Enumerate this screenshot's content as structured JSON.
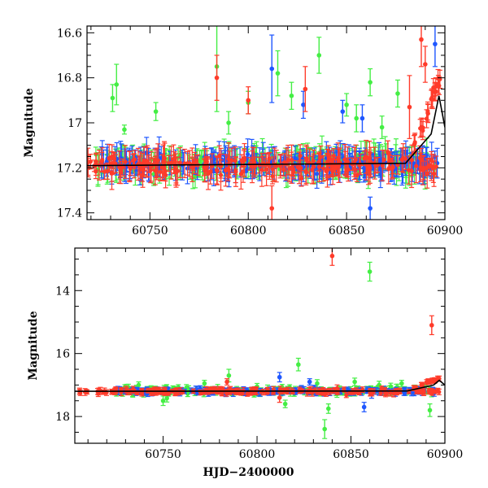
{
  "chart_data": [
    {
      "type": "scatter",
      "panel": "top",
      "xlabel": "",
      "ylabel": "Magnitude",
      "xlim": [
        60718,
        60900
      ],
      "ylim": [
        17.43,
        16.57
      ],
      "y_inverted": true,
      "x_ticks": [
        "60750",
        "60800",
        "60850",
        "60900"
      ],
      "x_tick_values": [
        60750,
        60800,
        60850,
        60900
      ],
      "y_ticks": [
        "16.6",
        "16.8",
        "17",
        "17.2",
        "17.4"
      ],
      "y_tick_values": [
        16.6,
        16.8,
        17.0,
        17.2,
        17.4
      ],
      "colors": {
        "green": "#44ee44",
        "blue": "#1f57ff",
        "red": "#ff3b2a",
        "model": "#000000"
      },
      "series": [
        {
          "color": "green",
          "baseline": {
            "x_range": [
              60722,
              60895
            ],
            "y": 17.18,
            "scatter": 0.05
          },
          "points": [
            {
              "x": 60731,
              "y": 16.89,
              "err": 0.06
            },
            {
              "x": 60733,
              "y": 16.83,
              "err": 0.09
            },
            {
              "x": 60737,
              "y": 17.03,
              "err": 0.02
            },
            {
              "x": 60753,
              "y": 16.95,
              "err": 0.04
            },
            {
              "x": 60784,
              "y": 16.75,
              "err": 0.2
            },
            {
              "x": 60790,
              "y": 17.0,
              "err": 0.05
            },
            {
              "x": 60800,
              "y": 16.91,
              "err": 0.05
            },
            {
              "x": 60815,
              "y": 16.78,
              "err": 0.1
            },
            {
              "x": 60822,
              "y": 16.88,
              "err": 0.06
            },
            {
              "x": 60836,
              "y": 16.7,
              "err": 0.08
            },
            {
              "x": 60850,
              "y": 16.92,
              "err": 0.05
            },
            {
              "x": 60855,
              "y": 16.98,
              "err": 0.06
            },
            {
              "x": 60862,
              "y": 16.82,
              "err": 0.06
            },
            {
              "x": 60868,
              "y": 17.02,
              "err": 0.05
            },
            {
              "x": 60876,
              "y": 16.87,
              "err": 0.06
            }
          ]
        },
        {
          "color": "blue",
          "baseline": {
            "x_range": [
              60725,
              60897
            ],
            "y": 17.18,
            "scatter": 0.04
          },
          "points": [
            {
              "x": 60812,
              "y": 16.76,
              "err": 0.15
            },
            {
              "x": 60828,
              "y": 16.92,
              "err": 0.06
            },
            {
              "x": 60848,
              "y": 16.95,
              "err": 0.05
            },
            {
              "x": 60858,
              "y": 16.98,
              "err": 0.06
            },
            {
              "x": 60862,
              "y": 17.38,
              "err": 0.05
            },
            {
              "x": 60895,
              "y": 16.65,
              "err": 0.1
            }
          ]
        },
        {
          "color": "red",
          "baseline": {
            "x_range": [
              60718,
              60897
            ],
            "y": 17.19,
            "scatter": 0.04
          },
          "points": [
            {
              "x": 60784,
              "y": 16.8,
              "err": 0.1
            },
            {
              "x": 60800,
              "y": 16.9,
              "err": 0.06
            },
            {
              "x": 60812,
              "y": 17.38,
              "err": 0.1
            },
            {
              "x": 60829,
              "y": 16.85,
              "err": 0.1
            },
            {
              "x": 60871,
              "y": 17.13,
              "err": 0.05
            },
            {
              "x": 60882,
              "y": 16.93,
              "err": 0.14
            },
            {
              "x": 60888,
              "y": 16.63,
              "err": 0.12
            },
            {
              "x": 60890,
              "y": 16.74,
              "err": 0.08
            }
          ]
        }
      ],
      "outburst": {
        "x": [
          60884,
          60888,
          60891,
          60893,
          60895,
          60897
        ],
        "y": [
          17.1,
          17.02,
          16.96,
          16.9,
          16.85,
          16.82
        ]
      },
      "model_curve": {
        "x": [
          60718,
          60880,
          60893,
          60897,
          60900
        ],
        "y": [
          17.19,
          17.18,
          17.05,
          16.88,
          17.02
        ]
      }
    },
    {
      "type": "scatter",
      "panel": "bottom",
      "xlabel": "HJD−2400000",
      "ylabel": "Magnitude",
      "xlim": [
        60703,
        60900
      ],
      "ylim": [
        18.85,
        12.65
      ],
      "y_inverted": true,
      "x_ticks": [
        "60750",
        "60800",
        "60850",
        "60900"
      ],
      "x_tick_values": [
        60750,
        60800,
        60850,
        60900
      ],
      "y_ticks": [
        "14",
        "16",
        "18"
      ],
      "y_tick_values": [
        14,
        16,
        18
      ],
      "colors": {
        "green": "#44ee44",
        "blue": "#1f57ff",
        "red": "#ff3b2a",
        "model": "#000000"
      },
      "series": [
        {
          "color": "green",
          "baseline": {
            "x_range": [
              60725,
              60895
            ],
            "y": 17.18,
            "scatter": 0.12
          },
          "points": [
            {
              "x": 60737,
              "y": 17.0,
              "err": 0.1
            },
            {
              "x": 60750,
              "y": 17.5,
              "err": 0.15
            },
            {
              "x": 60752,
              "y": 17.42,
              "err": 0.12
            },
            {
              "x": 60772,
              "y": 16.95,
              "err": 0.1
            },
            {
              "x": 60785,
              "y": 16.7,
              "err": 0.2
            },
            {
              "x": 60800,
              "y": 17.05,
              "err": 0.1
            },
            {
              "x": 60815,
              "y": 17.6,
              "err": 0.12
            },
            {
              "x": 60822,
              "y": 16.35,
              "err": 0.2
            },
            {
              "x": 60832,
              "y": 16.95,
              "err": 0.12
            },
            {
              "x": 60836,
              "y": 18.4,
              "err": 0.3
            },
            {
              "x": 60838,
              "y": 17.75,
              "err": 0.15
            },
            {
              "x": 60852,
              "y": 16.9,
              "err": 0.12
            },
            {
              "x": 60860,
              "y": 13.4,
              "err": 0.3
            },
            {
              "x": 60865,
              "y": 17.0,
              "err": 0.12
            },
            {
              "x": 60877,
              "y": 16.95,
              "err": 0.1
            },
            {
              "x": 60892,
              "y": 17.8,
              "err": 0.2
            }
          ]
        },
        {
          "color": "blue",
          "baseline": {
            "x_range": [
              60725,
              60897
            ],
            "y": 17.2,
            "scatter": 0.08
          },
          "points": [
            {
              "x": 60812,
              "y": 16.75,
              "err": 0.15
            },
            {
              "x": 60828,
              "y": 16.9,
              "err": 0.1
            },
            {
              "x": 60857,
              "y": 17.7,
              "err": 0.15
            },
            {
              "x": 60861,
              "y": 17.3,
              "err": 0.12
            }
          ]
        },
        {
          "color": "red",
          "baseline": {
            "x_range": [
              60705,
              60897
            ],
            "y": 17.2,
            "scatter": 0.08
          },
          "points": [
            {
              "x": 60784,
              "y": 16.9,
              "err": 0.1
            },
            {
              "x": 60812,
              "y": 17.4,
              "err": 0.15
            },
            {
              "x": 60840,
              "y": 12.9,
              "err": 0.3
            },
            {
              "x": 60893,
              "y": 15.1,
              "err": 0.3
            }
          ]
        }
      ],
      "outburst": {
        "x": [
          60884,
          60888,
          60891,
          60894,
          60897
        ],
        "y": [
          17.1,
          17.0,
          16.9,
          16.85,
          16.8
        ]
      },
      "model_curve": {
        "x": [
          60703,
          60880,
          60894,
          60897,
          60900
        ],
        "y": [
          17.2,
          17.19,
          17.0,
          16.85,
          17.0
        ]
      }
    }
  ]
}
